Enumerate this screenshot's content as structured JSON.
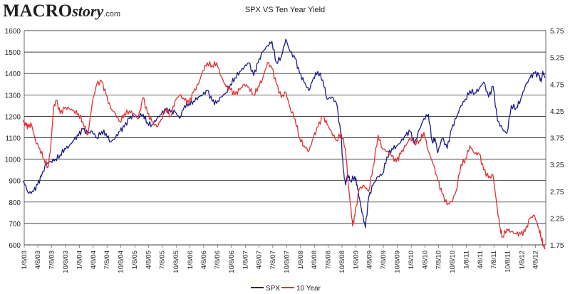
{
  "logo": {
    "part1": "MACRO",
    "part2": "story",
    "part3": ".com"
  },
  "colors": {
    "spx": "#1a1a8c",
    "yield": "#e03030",
    "grid": "#000000",
    "axis": "#444444"
  },
  "chart_data": {
    "type": "line",
    "title": "SPX VS Ten Year Yield",
    "x_start": "2003-01-08",
    "x_end": "2012-06-15",
    "x_tick_labels": [
      "1/8/03",
      "4/8/03",
      "7/8/03",
      "10/8/03",
      "1/8/04",
      "4/8/04",
      "7/8/04",
      "10/8/04",
      "1/8/05",
      "4/8/05",
      "7/8/05",
      "10/8/05",
      "1/8/06",
      "4/8/06",
      "7/8/06",
      "10/8/06",
      "1/8/07",
      "4/8/07",
      "7/8/07",
      "10/8/07",
      "1/8/08",
      "4/8/08",
      "7/8/08",
      "10/8/08",
      "1/8/09",
      "4/8/09",
      "7/8/09",
      "10/8/09",
      "1/8/10",
      "4/8/10",
      "7/8/10",
      "10/8/10",
      "1/8/11",
      "4/8/11",
      "7/8/11",
      "10/8/11",
      "1/8/12",
      "4/8/12"
    ],
    "y_left": {
      "min": 600,
      "max": 1600,
      "ticks": [
        "600",
        "700",
        "800",
        "900",
        "1000",
        "1100",
        "1200",
        "1300",
        "1400",
        "1500",
        "1600"
      ]
    },
    "y_right": {
      "min": 1.75,
      "max": 5.75,
      "ticks": [
        "1.75",
        "2.25",
        "2.75",
        "3.25",
        "3.75",
        "4.25",
        "4.75",
        "5.25",
        "5.75"
      ]
    },
    "series": [
      {
        "name": "SPX",
        "axis": "left",
        "values": [
          [
            2003.0,
            900
          ],
          [
            2003.1,
            840
          ],
          [
            2003.19,
            850
          ],
          [
            2003.26,
            880
          ],
          [
            2003.33,
            920
          ],
          [
            2003.42,
            980
          ],
          [
            2003.5,
            990
          ],
          [
            2003.58,
            1000
          ],
          [
            2003.67,
            1020
          ],
          [
            2003.75,
            1050
          ],
          [
            2003.83,
            1060
          ],
          [
            2003.92,
            1090
          ],
          [
            2004.0,
            1110
          ],
          [
            2004.08,
            1140
          ],
          [
            2004.17,
            1120
          ],
          [
            2004.25,
            1130
          ],
          [
            2004.33,
            1100
          ],
          [
            2004.42,
            1130
          ],
          [
            2004.5,
            1120
          ],
          [
            2004.58,
            1080
          ],
          [
            2004.67,
            1100
          ],
          [
            2004.75,
            1130
          ],
          [
            2004.83,
            1150
          ],
          [
            2004.92,
            1190
          ],
          [
            2005.0,
            1200
          ],
          [
            2005.08,
            1200
          ],
          [
            2005.17,
            1210
          ],
          [
            2005.25,
            1170
          ],
          [
            2005.33,
            1160
          ],
          [
            2005.42,
            1190
          ],
          [
            2005.5,
            1210
          ],
          [
            2005.58,
            1230
          ],
          [
            2005.67,
            1220
          ],
          [
            2005.75,
            1220
          ],
          [
            2005.83,
            1190
          ],
          [
            2005.92,
            1250
          ],
          [
            2006.0,
            1260
          ],
          [
            2006.08,
            1270
          ],
          [
            2006.17,
            1290
          ],
          [
            2006.25,
            1300
          ],
          [
            2006.33,
            1320
          ],
          [
            2006.42,
            1270
          ],
          [
            2006.5,
            1260
          ],
          [
            2006.58,
            1290
          ],
          [
            2006.67,
            1310
          ],
          [
            2006.75,
            1350
          ],
          [
            2006.83,
            1380
          ],
          [
            2006.92,
            1410
          ],
          [
            2007.0,
            1430
          ],
          [
            2007.08,
            1450
          ],
          [
            2007.17,
            1390
          ],
          [
            2007.25,
            1450
          ],
          [
            2007.33,
            1500
          ],
          [
            2007.42,
            1530
          ],
          [
            2007.5,
            1550
          ],
          [
            2007.58,
            1450
          ],
          [
            2007.67,
            1480
          ],
          [
            2007.75,
            1560
          ],
          [
            2007.83,
            1500
          ],
          [
            2007.92,
            1470
          ],
          [
            2008.0,
            1400
          ],
          [
            2008.08,
            1360
          ],
          [
            2008.17,
            1320
          ],
          [
            2008.25,
            1380
          ],
          [
            2008.33,
            1410
          ],
          [
            2008.42,
            1370
          ],
          [
            2008.5,
            1280
          ],
          [
            2008.58,
            1290
          ],
          [
            2008.67,
            1260
          ],
          [
            2008.75,
            1110
          ],
          [
            2008.79,
            950
          ],
          [
            2008.83,
            880
          ],
          [
            2008.87,
            930
          ],
          [
            2008.92,
            900
          ],
          [
            2009.0,
            920
          ],
          [
            2009.04,
            880
          ],
          [
            2009.08,
            820
          ],
          [
            2009.13,
            750
          ],
          [
            2009.19,
            680
          ],
          [
            2009.25,
            820
          ],
          [
            2009.33,
            880
          ],
          [
            2009.42,
            920
          ],
          [
            2009.5,
            930
          ],
          [
            2009.58,
            1010
          ],
          [
            2009.67,
            1050
          ],
          [
            2009.75,
            1060
          ],
          [
            2009.83,
            1080
          ],
          [
            2009.92,
            1110
          ],
          [
            2010.0,
            1130
          ],
          [
            2010.08,
            1070
          ],
          [
            2010.17,
            1140
          ],
          [
            2010.25,
            1190
          ],
          [
            2010.33,
            1210
          ],
          [
            2010.4,
            1080
          ],
          [
            2010.45,
            1100
          ],
          [
            2010.5,
            1030
          ],
          [
            2010.58,
            1100
          ],
          [
            2010.67,
            1050
          ],
          [
            2010.75,
            1140
          ],
          [
            2010.83,
            1190
          ],
          [
            2010.92,
            1250
          ],
          [
            2011.0,
            1280
          ],
          [
            2011.08,
            1320
          ],
          [
            2011.17,
            1310
          ],
          [
            2011.25,
            1330
          ],
          [
            2011.33,
            1360
          ],
          [
            2011.42,
            1290
          ],
          [
            2011.5,
            1340
          ],
          [
            2011.58,
            1180
          ],
          [
            2011.67,
            1140
          ],
          [
            2011.75,
            1120
          ],
          [
            2011.83,
            1250
          ],
          [
            2011.92,
            1240
          ],
          [
            2012.0,
            1280
          ],
          [
            2012.08,
            1340
          ],
          [
            2012.17,
            1380
          ],
          [
            2012.25,
            1400
          ],
          [
            2012.33,
            1390
          ],
          [
            2012.37,
            1360
          ],
          [
            2012.4,
            1410
          ],
          [
            2012.44,
            1380
          ]
        ]
      },
      {
        "name": "10 Year",
        "axis": "right",
        "values": [
          [
            2003.0,
            4.05
          ],
          [
            2003.05,
            3.98
          ],
          [
            2003.1,
            3.95
          ],
          [
            2003.15,
            4.0
          ],
          [
            2003.22,
            3.7
          ],
          [
            2003.3,
            3.55
          ],
          [
            2003.38,
            3.35
          ],
          [
            2003.45,
            3.2
          ],
          [
            2003.5,
            3.6
          ],
          [
            2003.55,
            4.3
          ],
          [
            2003.6,
            4.45
          ],
          [
            2003.67,
            4.2
          ],
          [
            2003.75,
            4.3
          ],
          [
            2003.83,
            4.3
          ],
          [
            2003.92,
            4.25
          ],
          [
            2004.0,
            4.2
          ],
          [
            2004.08,
            4.05
          ],
          [
            2004.17,
            3.8
          ],
          [
            2004.25,
            4.4
          ],
          [
            2004.33,
            4.75
          ],
          [
            2004.42,
            4.8
          ],
          [
            2004.5,
            4.55
          ],
          [
            2004.58,
            4.3
          ],
          [
            2004.67,
            4.2
          ],
          [
            2004.75,
            4.05
          ],
          [
            2004.83,
            4.2
          ],
          [
            2004.92,
            4.25
          ],
          [
            2005.0,
            4.2
          ],
          [
            2005.08,
            4.1
          ],
          [
            2005.17,
            4.5
          ],
          [
            2005.25,
            4.2
          ],
          [
            2005.33,
            4.05
          ],
          [
            2005.42,
            3.95
          ],
          [
            2005.5,
            4.1
          ],
          [
            2005.58,
            4.3
          ],
          [
            2005.67,
            4.15
          ],
          [
            2005.75,
            4.45
          ],
          [
            2005.83,
            4.55
          ],
          [
            2005.92,
            4.45
          ],
          [
            2006.0,
            4.4
          ],
          [
            2006.08,
            4.6
          ],
          [
            2006.17,
            4.75
          ],
          [
            2006.25,
            5.0
          ],
          [
            2006.33,
            5.15
          ],
          [
            2006.42,
            5.1
          ],
          [
            2006.5,
            5.15
          ],
          [
            2006.58,
            4.9
          ],
          [
            2006.67,
            4.7
          ],
          [
            2006.75,
            4.65
          ],
          [
            2006.83,
            4.55
          ],
          [
            2006.92,
            4.65
          ],
          [
            2007.0,
            4.75
          ],
          [
            2007.08,
            4.7
          ],
          [
            2007.17,
            4.55
          ],
          [
            2007.25,
            4.7
          ],
          [
            2007.33,
            4.85
          ],
          [
            2007.42,
            5.15
          ],
          [
            2007.5,
            5.05
          ],
          [
            2007.58,
            4.75
          ],
          [
            2007.67,
            4.5
          ],
          [
            2007.75,
            4.6
          ],
          [
            2007.83,
            4.3
          ],
          [
            2007.92,
            4.1
          ],
          [
            2008.0,
            3.75
          ],
          [
            2008.08,
            3.6
          ],
          [
            2008.17,
            3.5
          ],
          [
            2008.25,
            3.75
          ],
          [
            2008.33,
            3.95
          ],
          [
            2008.42,
            4.15
          ],
          [
            2008.5,
            4.0
          ],
          [
            2008.58,
            3.85
          ],
          [
            2008.67,
            3.7
          ],
          [
            2008.75,
            3.85
          ],
          [
            2008.83,
            3.55
          ],
          [
            2008.88,
            2.9
          ],
          [
            2008.92,
            2.5
          ],
          [
            2008.96,
            2.1
          ],
          [
            2009.0,
            2.3
          ],
          [
            2009.08,
            2.8
          ],
          [
            2009.17,
            2.85
          ],
          [
            2009.25,
            2.75
          ],
          [
            2009.33,
            3.2
          ],
          [
            2009.42,
            3.8
          ],
          [
            2009.5,
            3.55
          ],
          [
            2009.58,
            3.5
          ],
          [
            2009.67,
            3.4
          ],
          [
            2009.75,
            3.3
          ],
          [
            2009.83,
            3.45
          ],
          [
            2009.92,
            3.6
          ],
          [
            2010.0,
            3.75
          ],
          [
            2010.08,
            3.65
          ],
          [
            2010.17,
            3.7
          ],
          [
            2010.25,
            3.85
          ],
          [
            2010.33,
            3.5
          ],
          [
            2010.42,
            3.25
          ],
          [
            2010.5,
            2.95
          ],
          [
            2010.58,
            2.7
          ],
          [
            2010.67,
            2.5
          ],
          [
            2010.75,
            2.55
          ],
          [
            2010.83,
            2.75
          ],
          [
            2010.92,
            3.25
          ],
          [
            2011.0,
            3.35
          ],
          [
            2011.08,
            3.6
          ],
          [
            2011.17,
            3.45
          ],
          [
            2011.25,
            3.45
          ],
          [
            2011.33,
            3.15
          ],
          [
            2011.42,
            3.0
          ],
          [
            2011.5,
            3.05
          ],
          [
            2011.58,
            2.4
          ],
          [
            2011.63,
            2.05
          ],
          [
            2011.67,
            1.9
          ],
          [
            2011.75,
            2.05
          ],
          [
            2011.83,
            2.0
          ],
          [
            2011.92,
            1.95
          ],
          [
            2012.0,
            1.95
          ],
          [
            2012.08,
            2.0
          ],
          [
            2012.17,
            2.25
          ],
          [
            2012.25,
            2.3
          ],
          [
            2012.33,
            2.05
          ],
          [
            2012.37,
            1.9
          ],
          [
            2012.41,
            1.75
          ],
          [
            2012.44,
            1.7
          ]
        ]
      }
    ]
  }
}
